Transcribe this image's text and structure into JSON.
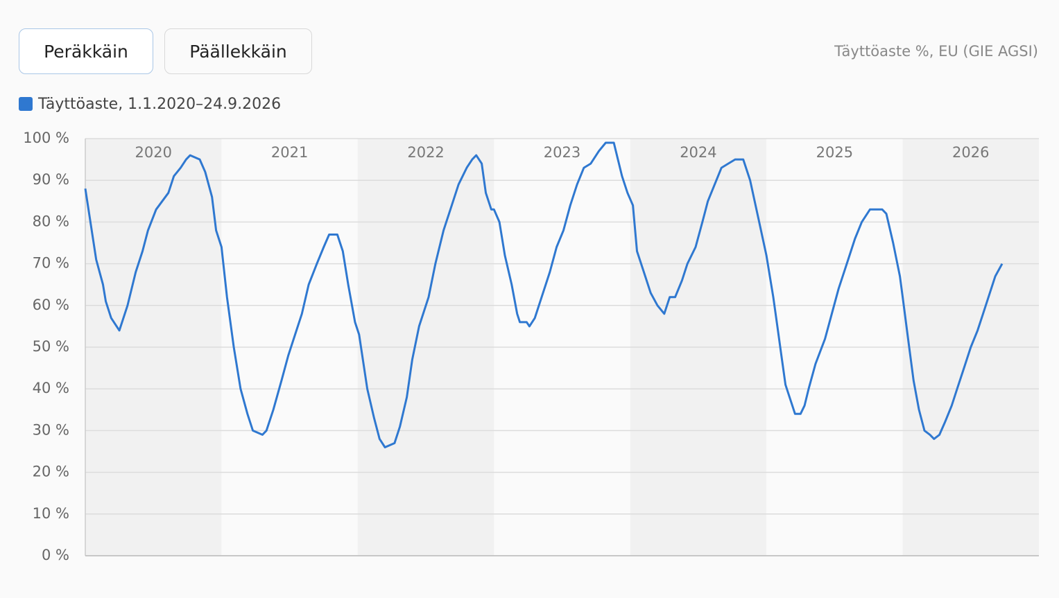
{
  "controls": {
    "buttons": [
      "Peräkkäin",
      "Päällekkäin"
    ],
    "note": "Täyttöaste %, EU (GIE AGSI)"
  },
  "chart_data": {
    "type": "line",
    "x": [
      2020.0,
      2020.08,
      2020.13,
      2020.15,
      2020.19,
      2020.25,
      2020.31,
      2020.37,
      2020.42,
      2020.46,
      2020.52,
      2020.61,
      2020.65,
      2020.7,
      2020.74,
      2020.77,
      2020.84,
      2020.88,
      2020.93,
      2020.96,
      2021.0,
      2021.04,
      2021.09,
      2021.14,
      2021.19,
      2021.23,
      2021.3,
      2021.33,
      2021.38,
      2021.44,
      2021.49,
      2021.54,
      2021.59,
      2021.64,
      2021.7,
      2021.75,
      2021.79,
      2021.85,
      2021.89,
      2021.93,
      2021.98,
      2022.01,
      2022.07,
      2022.12,
      2022.16,
      2022.2,
      2022.27,
      2022.31,
      2022.36,
      2022.4,
      2022.45,
      2022.52,
      2022.57,
      2022.63,
      2022.69,
      2022.74,
      2022.8,
      2022.84,
      2022.87,
      2022.91,
      2022.94,
      2022.98,
      2023.0,
      2023.04,
      2023.08,
      2023.13,
      2023.17,
      2023.19,
      2023.24,
      2023.26,
      2023.3,
      2023.35,
      2023.41,
      2023.46,
      2023.51,
      2023.56,
      2023.61,
      2023.66,
      2023.71,
      2023.77,
      2023.82,
      2023.88,
      2023.94,
      2023.98,
      2024.02,
      2024.05,
      2024.1,
      2024.15,
      2024.2,
      2024.25,
      2024.29,
      2024.33,
      2024.38,
      2024.42,
      2024.48,
      2024.53,
      2024.57,
      2024.62,
      2024.67,
      2024.72,
      2024.77,
      2024.83,
      2024.88,
      2024.94,
      2025.0,
      2025.05,
      2025.08,
      2025.11,
      2025.14,
      2025.18,
      2025.21,
      2025.25,
      2025.28,
      2025.31,
      2025.36,
      2025.43,
      2025.48,
      2025.53,
      2025.6,
      2025.65,
      2025.7,
      2025.76,
      2025.85,
      2025.88,
      2025.93,
      2025.98,
      2026.0,
      2026.04,
      2026.08,
      2026.12,
      2026.16,
      2026.2,
      2026.23,
      2026.27,
      2026.31,
      2026.36,
      2026.4,
      2026.45,
      2026.5,
      2026.55,
      2026.59,
      2026.64,
      2026.68,
      2026.73
    ],
    "series": [
      {
        "name": "Täyttöaste, 1.1.2020–24.9.2026",
        "color": "#2f78d0",
        "values": [
          88,
          71,
          65,
          61,
          57,
          54,
          60,
          68,
          73,
          78,
          83,
          87,
          91,
          93,
          95,
          96,
          95,
          92,
          86,
          78,
          74,
          62,
          50,
          40,
          34,
          30,
          29,
          30,
          35,
          42,
          48,
          53,
          58,
          65,
          70,
          74,
          77,
          77,
          73,
          65,
          56,
          53,
          40,
          33,
          28,
          26,
          27,
          31,
          38,
          47,
          55,
          62,
          70,
          78,
          84,
          89,
          93,
          95,
          96,
          94,
          87,
          83,
          83,
          80,
          72,
          65,
          58,
          56,
          56,
          55,
          57,
          62,
          68,
          74,
          78,
          84,
          89,
          93,
          94,
          97,
          99,
          99,
          91,
          87,
          84,
          73,
          68,
          63,
          60,
          58,
          62,
          62,
          66,
          70,
          74,
          80,
          85,
          89,
          93,
          94,
          95,
          95,
          90,
          81,
          72,
          62,
          55,
          48,
          41,
          37,
          34,
          34,
          36,
          40,
          46,
          52,
          58,
          64,
          71,
          76,
          80,
          83,
          83,
          82,
          75,
          67,
          62,
          52,
          42,
          35,
          30,
          29,
          28,
          29,
          32,
          36,
          40,
          45,
          50,
          54,
          58,
          63,
          67,
          70
        ]
      }
    ],
    "xlim": [
      2020,
      2027
    ],
    "xticks": [
      2020,
      2021,
      2022,
      2023,
      2024,
      2025,
      2026
    ],
    "ylim": [
      0,
      100
    ],
    "yticks": [
      {
        "value": 0,
        "label": "0 %"
      },
      {
        "value": 10,
        "label": "10 %"
      },
      {
        "value": 20,
        "label": "20 %"
      },
      {
        "value": 30,
        "label": "30 %"
      },
      {
        "value": 40,
        "label": "40 %"
      },
      {
        "value": 50,
        "label": "50 %"
      },
      {
        "value": 60,
        "label": "60 %"
      },
      {
        "value": 70,
        "label": "70 %"
      },
      {
        "value": 80,
        "label": "80 %"
      },
      {
        "value": 90,
        "label": "90 %"
      },
      {
        "value": 100,
        "label": "100 %"
      }
    ],
    "grid": true
  }
}
